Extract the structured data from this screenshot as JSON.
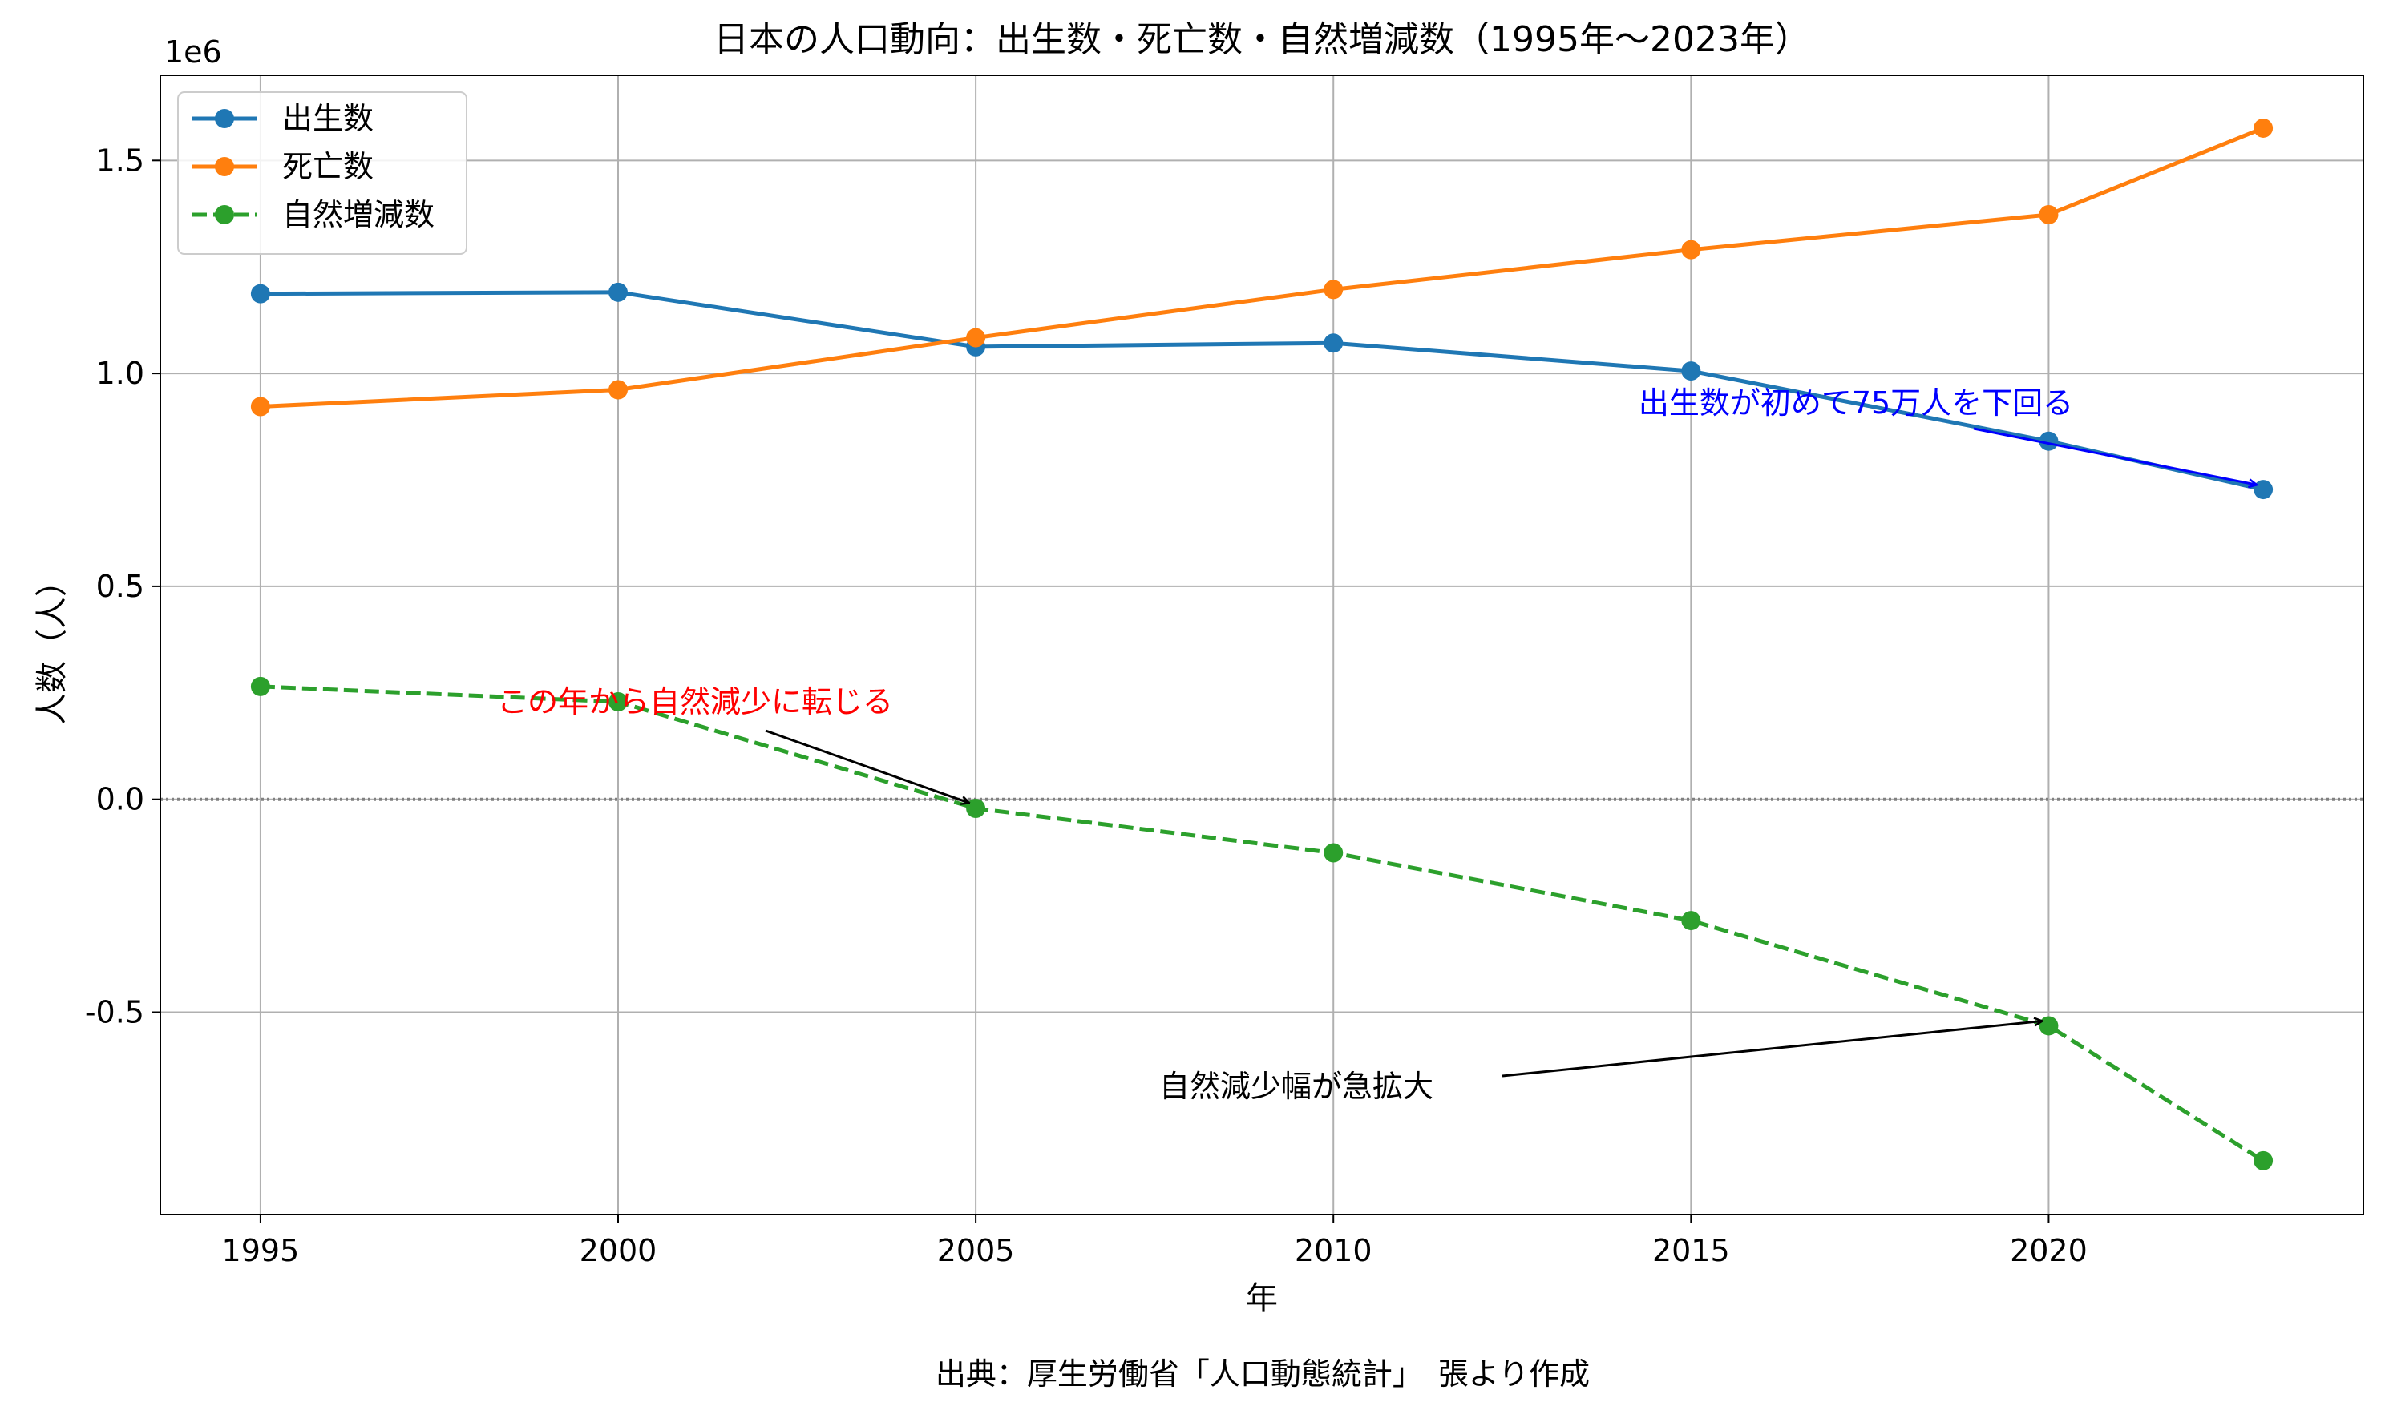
{
  "chart_data": {
    "type": "line",
    "title": "日本の人口動向：出生数・死亡数・自然増減数（1995年〜2023年）",
    "xlabel": "年",
    "ylabel": "人数（人）",
    "y_offset_label": "1e6",
    "x": [
      1995,
      2000,
      2005,
      2010,
      2015,
      2020,
      2023
    ],
    "xlim": [
      1993.6,
      2024.4
    ],
    "ylim": [
      -0.975,
      1.7
    ],
    "y_unit_scale": 1000000,
    "x_ticks": [
      1995,
      2000,
      2005,
      2010,
      2015,
      2020
    ],
    "x_tick_labels": [
      "1995",
      "2000",
      "2005",
      "2010",
      "2015",
      "2020"
    ],
    "y_ticks": [
      -0.5,
      0.0,
      0.5,
      1.0,
      1.5
    ],
    "y_tick_labels": [
      "-0.5",
      "0.0",
      "0.5",
      "1.0",
      "1.5"
    ],
    "grid": true,
    "legend_position": "top-left",
    "series": [
      {
        "name": "出生数",
        "color": "#1f77b4",
        "dash": "solid",
        "values": [
          1187064,
          1190547,
          1062530,
          1071304,
          1005721,
          840835,
          727288
        ]
      },
      {
        "name": "死亡数",
        "color": "#ff7f0e",
        "dash": "solid",
        "values": [
          922139,
          961653,
          1083796,
          1197014,
          1290510,
          1372755,
          1575936
        ]
      },
      {
        "name": "自然増減数",
        "color": "#2ca02c",
        "dash": "dashed",
        "values": [
          264925,
          228894,
          -21266,
          -125710,
          -284789,
          -531920,
          -848659
        ]
      }
    ],
    "reference_line": {
      "y": 0,
      "style": "dotted",
      "color": "#808080"
    },
    "annotations": [
      {
        "text": "この年から自然減少に転じる",
        "color": "#ff0000",
        "arrow_color": "#000000",
        "xy": [
          2005,
          -0.02
        ],
        "xytext": [
          2001,
          0.15
        ]
      },
      {
        "text": "出生数が初めて75万人を下回る",
        "color": "#0000ff",
        "arrow_color": "#0000ff",
        "xy": [
          2023,
          0.727
        ],
        "xytext": [
          2019,
          0.87
        ]
      },
      {
        "text": "自然減少幅が急拡大",
        "color": "#000000",
        "arrow_color": "#000000",
        "xy": [
          2020,
          -0.532
        ],
        "xytext": [
          2010,
          -0.62
        ]
      }
    ],
    "source": "出典：厚生労働省「人口動態統計」　張より作成"
  }
}
